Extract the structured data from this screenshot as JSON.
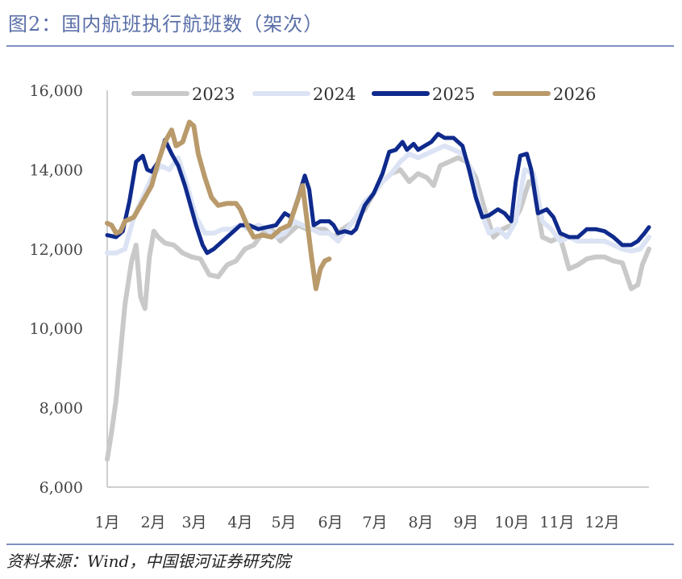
{
  "header": {
    "title": "图2：国内航班执行航班数（架次）"
  },
  "footer": {
    "source": "资料来源：Wind，中国银河证券研究院"
  },
  "chart_data": {
    "type": "line",
    "title": "图2：国内航班执行航班数（架次）",
    "xlabel": "",
    "ylabel": "",
    "x_ticks": [
      "1月",
      "2月",
      "3月",
      "4月",
      "5月",
      "6月",
      "7月",
      "8月",
      "9月",
      "10月",
      "11月",
      "12月"
    ],
    "y_ticks": [
      "6,000",
      "8,000",
      "10,000",
      "12,000",
      "14,000",
      "16,000"
    ],
    "y_tick_values": [
      6000,
      8000,
      10000,
      12000,
      14000,
      16000
    ],
    "ylim": [
      6000,
      16000
    ],
    "xlim": [
      1,
      13.2
    ],
    "grid": false,
    "legend_position": "top",
    "series": [
      {
        "name": "2023",
        "color": "#c9c9c9",
        "points": [
          [
            1.0,
            6700
          ],
          [
            1.1,
            7400
          ],
          [
            1.2,
            8200
          ],
          [
            1.3,
            9400
          ],
          [
            1.4,
            10600
          ],
          [
            1.55,
            11700
          ],
          [
            1.65,
            12100
          ],
          [
            1.75,
            10800
          ],
          [
            1.85,
            10500
          ],
          [
            1.95,
            11800
          ],
          [
            2.05,
            12450
          ],
          [
            2.15,
            12300
          ],
          [
            2.3,
            12150
          ],
          [
            2.5,
            12100
          ],
          [
            2.7,
            11900
          ],
          [
            2.9,
            11800
          ],
          [
            3.1,
            11750
          ],
          [
            3.3,
            11350
          ],
          [
            3.5,
            11300
          ],
          [
            3.7,
            11600
          ],
          [
            3.9,
            11700
          ],
          [
            4.1,
            12000
          ],
          [
            4.3,
            12100
          ],
          [
            4.5,
            12400
          ],
          [
            4.7,
            12500
          ],
          [
            4.9,
            12200
          ],
          [
            5.1,
            12400
          ],
          [
            5.3,
            12600
          ],
          [
            5.5,
            12500
          ],
          [
            5.7,
            12500
          ],
          [
            5.9,
            12500
          ],
          [
            6.1,
            12300
          ],
          [
            6.3,
            12500
          ],
          [
            6.5,
            12650
          ],
          [
            6.8,
            13000
          ],
          [
            7.0,
            13400
          ],
          [
            7.2,
            13700
          ],
          [
            7.4,
            13900
          ],
          [
            7.6,
            14000
          ],
          [
            7.8,
            13700
          ],
          [
            8.0,
            13900
          ],
          [
            8.2,
            13800
          ],
          [
            8.35,
            13600
          ],
          [
            8.5,
            14100
          ],
          [
            8.7,
            14200
          ],
          [
            8.9,
            14300
          ],
          [
            9.1,
            14200
          ],
          [
            9.3,
            13800
          ],
          [
            9.5,
            13000
          ],
          [
            9.7,
            12300
          ],
          [
            9.9,
            12500
          ],
          [
            10.1,
            12600
          ],
          [
            10.3,
            13000
          ],
          [
            10.5,
            13700
          ],
          [
            10.6,
            13600
          ],
          [
            10.8,
            12300
          ],
          [
            11.0,
            12200
          ],
          [
            11.2,
            12300
          ],
          [
            11.4,
            11500
          ],
          [
            11.6,
            11600
          ],
          [
            11.8,
            11750
          ],
          [
            12.0,
            11800
          ],
          [
            12.2,
            11800
          ],
          [
            12.4,
            11700
          ],
          [
            12.6,
            11650
          ],
          [
            12.8,
            11000
          ],
          [
            12.95,
            11100
          ],
          [
            13.05,
            11600
          ],
          [
            13.2,
            12000
          ]
        ]
      },
      {
        "name": "2024",
        "color": "#dbe3f4",
        "points": [
          [
            1.0,
            11900
          ],
          [
            1.2,
            11900
          ],
          [
            1.4,
            12000
          ],
          [
            1.6,
            12800
          ],
          [
            1.8,
            13300
          ],
          [
            2.0,
            13800
          ],
          [
            2.2,
            14100
          ],
          [
            2.4,
            14000
          ],
          [
            2.6,
            14300
          ],
          [
            2.8,
            13600
          ],
          [
            3.0,
            12800
          ],
          [
            3.2,
            12400
          ],
          [
            3.4,
            12400
          ],
          [
            3.6,
            12500
          ],
          [
            3.8,
            12500
          ],
          [
            4.0,
            12600
          ],
          [
            4.2,
            12500
          ],
          [
            4.4,
            12600
          ],
          [
            4.6,
            12500
          ],
          [
            4.8,
            12300
          ],
          [
            5.0,
            12400
          ],
          [
            5.2,
            12700
          ],
          [
            5.4,
            12600
          ],
          [
            5.6,
            12500
          ],
          [
            5.8,
            12400
          ],
          [
            6.0,
            12400
          ],
          [
            6.2,
            12200
          ],
          [
            6.4,
            12500
          ],
          [
            6.6,
            12800
          ],
          [
            6.8,
            13200
          ],
          [
            7.0,
            13400
          ],
          [
            7.2,
            13700
          ],
          [
            7.4,
            13900
          ],
          [
            7.6,
            14200
          ],
          [
            7.8,
            14400
          ],
          [
            8.0,
            14300
          ],
          [
            8.2,
            14400
          ],
          [
            8.4,
            14500
          ],
          [
            8.6,
            14600
          ],
          [
            8.8,
            14500
          ],
          [
            9.0,
            14400
          ],
          [
            9.2,
            14000
          ],
          [
            9.4,
            13000
          ],
          [
            9.6,
            12400
          ],
          [
            9.8,
            12500
          ],
          [
            10.0,
            12300
          ],
          [
            10.2,
            12700
          ],
          [
            10.4,
            14000
          ],
          [
            10.6,
            13900
          ],
          [
            10.8,
            12700
          ],
          [
            11.0,
            12500
          ],
          [
            11.2,
            12200
          ],
          [
            11.4,
            12300
          ],
          [
            11.6,
            12200
          ],
          [
            11.8,
            12200
          ],
          [
            12.0,
            12200
          ],
          [
            12.2,
            12200
          ],
          [
            12.4,
            12100
          ],
          [
            12.6,
            12000
          ],
          [
            12.8,
            11950
          ],
          [
            13.0,
            12000
          ],
          [
            13.2,
            12300
          ]
        ]
      },
      {
        "name": "2025",
        "color": "#0f2a8c",
        "points": [
          [
            1.0,
            12350
          ],
          [
            1.2,
            12300
          ],
          [
            1.35,
            12450
          ],
          [
            1.5,
            13200
          ],
          [
            1.65,
            14200
          ],
          [
            1.8,
            14350
          ],
          [
            1.9,
            14000
          ],
          [
            2.0,
            13950
          ],
          [
            2.15,
            14200
          ],
          [
            2.3,
            14750
          ],
          [
            2.45,
            14400
          ],
          [
            2.6,
            14100
          ],
          [
            2.75,
            13600
          ],
          [
            2.9,
            13000
          ],
          [
            3.0,
            12600
          ],
          [
            3.15,
            12100
          ],
          [
            3.25,
            11900
          ],
          [
            3.4,
            12000
          ],
          [
            3.6,
            12200
          ],
          [
            3.8,
            12400
          ],
          [
            4.0,
            12600
          ],
          [
            4.2,
            12600
          ],
          [
            4.4,
            12500
          ],
          [
            4.6,
            12550
          ],
          [
            4.8,
            12600
          ],
          [
            5.0,
            12900
          ],
          [
            5.15,
            12800
          ],
          [
            5.3,
            13300
          ],
          [
            5.45,
            13850
          ],
          [
            5.55,
            13500
          ],
          [
            5.65,
            12600
          ],
          [
            5.8,
            12700
          ],
          [
            6.0,
            12700
          ],
          [
            6.1,
            12600
          ],
          [
            6.2,
            12400
          ],
          [
            6.35,
            12450
          ],
          [
            6.5,
            12400
          ],
          [
            6.6,
            12500
          ],
          [
            6.8,
            13100
          ],
          [
            7.0,
            13400
          ],
          [
            7.2,
            13900
          ],
          [
            7.35,
            14450
          ],
          [
            7.5,
            14500
          ],
          [
            7.65,
            14700
          ],
          [
            7.75,
            14500
          ],
          [
            7.9,
            14650
          ],
          [
            8.0,
            14500
          ],
          [
            8.15,
            14600
          ],
          [
            8.3,
            14700
          ],
          [
            8.45,
            14900
          ],
          [
            8.6,
            14800
          ],
          [
            8.8,
            14800
          ],
          [
            9.0,
            14600
          ],
          [
            9.15,
            14000
          ],
          [
            9.3,
            13300
          ],
          [
            9.45,
            12800
          ],
          [
            9.6,
            12850
          ],
          [
            9.8,
            13000
          ],
          [
            9.95,
            12900
          ],
          [
            10.1,
            12700
          ],
          [
            10.2,
            13700
          ],
          [
            10.3,
            14350
          ],
          [
            10.45,
            14400
          ],
          [
            10.55,
            14000
          ],
          [
            10.7,
            12900
          ],
          [
            10.9,
            13000
          ],
          [
            11.05,
            12800
          ],
          [
            11.2,
            12400
          ],
          [
            11.4,
            12300
          ],
          [
            11.6,
            12300
          ],
          [
            11.8,
            12500
          ],
          [
            12.0,
            12500
          ],
          [
            12.2,
            12450
          ],
          [
            12.4,
            12300
          ],
          [
            12.6,
            12100
          ],
          [
            12.8,
            12100
          ],
          [
            12.95,
            12200
          ],
          [
            13.1,
            12400
          ],
          [
            13.2,
            12550
          ]
        ]
      },
      {
        "name": "2026",
        "color": "#b99a6b",
        "points": [
          [
            1.0,
            12650
          ],
          [
            1.1,
            12600
          ],
          [
            1.2,
            12400
          ],
          [
            1.3,
            12450
          ],
          [
            1.4,
            12700
          ],
          [
            1.6,
            12800
          ],
          [
            1.8,
            13200
          ],
          [
            2.0,
            13600
          ],
          [
            2.15,
            14200
          ],
          [
            2.3,
            14700
          ],
          [
            2.45,
            15000
          ],
          [
            2.55,
            14600
          ],
          [
            2.7,
            14700
          ],
          [
            2.85,
            15200
          ],
          [
            2.95,
            15100
          ],
          [
            3.05,
            14400
          ],
          [
            3.2,
            13800
          ],
          [
            3.35,
            13300
          ],
          [
            3.5,
            13100
          ],
          [
            3.7,
            13150
          ],
          [
            3.9,
            13150
          ],
          [
            4.0,
            13000
          ],
          [
            4.15,
            12600
          ],
          [
            4.3,
            12300
          ],
          [
            4.5,
            12350
          ],
          [
            4.7,
            12300
          ],
          [
            4.9,
            12500
          ],
          [
            5.1,
            12600
          ],
          [
            5.25,
            13100
          ],
          [
            5.4,
            13600
          ],
          [
            5.5,
            12700
          ],
          [
            5.6,
            11800
          ],
          [
            5.7,
            11000
          ],
          [
            5.8,
            11500
          ],
          [
            5.9,
            11700
          ],
          [
            6.0,
            11750
          ]
        ]
      }
    ]
  }
}
